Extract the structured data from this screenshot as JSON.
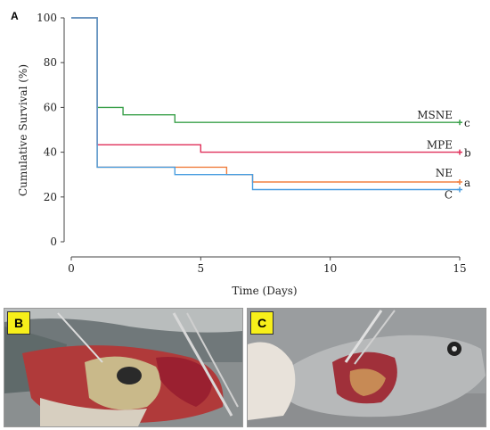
{
  "chart_data": {
    "type": "line",
    "panel_label": "A",
    "title": "",
    "xlabel": "Time (Days)",
    "ylabel": "Cumulative Survival (%)",
    "xlim": [
      0,
      15
    ],
    "ylim": [
      0,
      100
    ],
    "xticks": [
      0,
      5,
      10,
      15
    ],
    "yticks": [
      0,
      20,
      40,
      60,
      80,
      100
    ],
    "grid": false,
    "step": true,
    "series": [
      {
        "name": "MSNE",
        "sig": "c",
        "color": "#3aa04a",
        "x": [
          0,
          1,
          1,
          2,
          2,
          4,
          4,
          15
        ],
        "y": [
          100,
          100,
          60,
          60,
          56.7,
          56.7,
          53.3,
          53.3
        ]
      },
      {
        "name": "MPE",
        "sig": "b",
        "color": "#e0305a",
        "x": [
          0,
          1,
          1,
          5,
          5,
          15
        ],
        "y": [
          100,
          100,
          43.3,
          43.3,
          40,
          40
        ]
      },
      {
        "name": "NE",
        "sig": "a",
        "color": "#f08040",
        "x": [
          0,
          1,
          1,
          6,
          6,
          7,
          7,
          15
        ],
        "y": [
          100,
          100,
          33.3,
          33.3,
          30,
          30,
          26.7,
          26.7
        ]
      },
      {
        "name": "C",
        "sig": "",
        "color": "#4a9ee0",
        "x": [
          0,
          1,
          1,
          4,
          4,
          7,
          7,
          15
        ],
        "y": [
          100,
          100,
          33.3,
          33.3,
          30,
          30,
          23.3,
          23.3
        ]
      }
    ]
  },
  "photos": {
    "b_label": "B",
    "c_label": "C"
  }
}
